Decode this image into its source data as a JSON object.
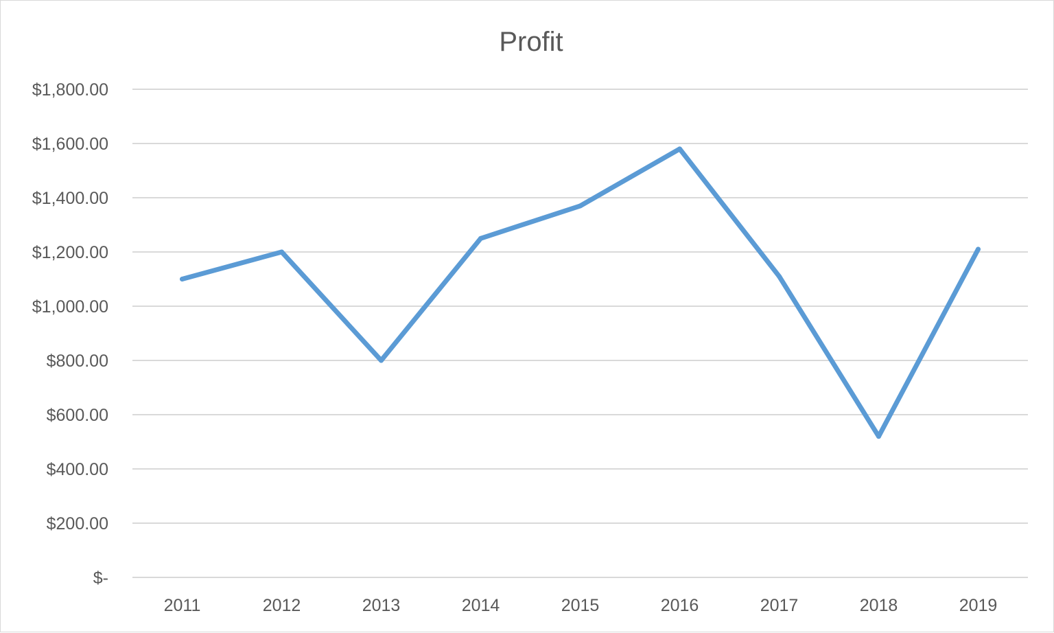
{
  "chart_data": {
    "type": "line",
    "title": "Profit",
    "xlabel": "",
    "ylabel": "",
    "categories": [
      "2011",
      "2012",
      "2013",
      "2014",
      "2015",
      "2016",
      "2017",
      "2018",
      "2019"
    ],
    "series": [
      {
        "values": [
          1100,
          1200,
          800,
          1250,
          1370,
          1580,
          1110,
          520,
          1210
        ],
        "color": "#5b9bd5"
      }
    ],
    "ylim": [
      0,
      1800
    ],
    "y_ticks": [
      0,
      200,
      400,
      600,
      800,
      1000,
      1200,
      1400,
      1600,
      1800
    ],
    "y_tick_labels": [
      "$-",
      "$200.00",
      "$400.00",
      "$600.00",
      "$800.00",
      "$1,000.00",
      "$1,200.00",
      "$1,400.00",
      "$1,600.00",
      "$1,800.00"
    ],
    "grid": true,
    "legend": "none"
  }
}
